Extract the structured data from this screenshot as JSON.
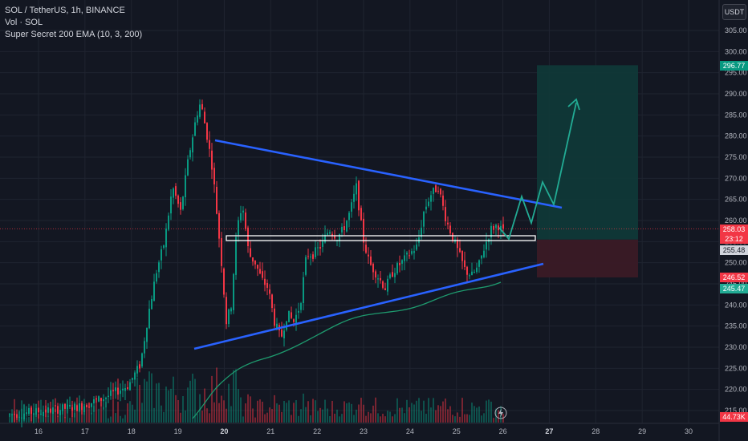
{
  "legend": {
    "symbol_line": "SOL / TetherUS, 1h, BINANCE",
    "volume_line": "Vol · SOL",
    "indicator_line": "Super Secret 200 EMA (10, 3, 200)"
  },
  "currency_button": "USDT",
  "price_axis": {
    "ticks": [
      "305.00",
      "300.00",
      "295.00",
      "290.00",
      "285.00",
      "280.00",
      "275.00",
      "270.00",
      "265.00",
      "260.00",
      "255.00",
      "250.00",
      "245.00",
      "240.00",
      "235.00",
      "230.00",
      "225.00",
      "220.00",
      "215.00"
    ]
  },
  "time_axis": {
    "ticks": [
      "16",
      "17",
      "18",
      "19",
      "20",
      "21",
      "22",
      "23",
      "24",
      "25",
      "26",
      "27",
      "28",
      "29",
      "30"
    ]
  },
  "price_tags": {
    "target": "296.77",
    "current_price": "258.03",
    "countdown": "23:12",
    "entry": "255.48",
    "stop": "246.52",
    "ema": "245.47",
    "volume": "44.73K"
  },
  "colors": {
    "background": "#131722",
    "up": "#089981",
    "down": "#f23645",
    "trendline": "#2962ff",
    "ema": "#1e9a6e",
    "target_zone": "#0f3a38",
    "stop_zone": "#3a1a26",
    "forecast_arrow": "#22ab94"
  },
  "icons": {
    "flash_icon": "lightning"
  }
}
